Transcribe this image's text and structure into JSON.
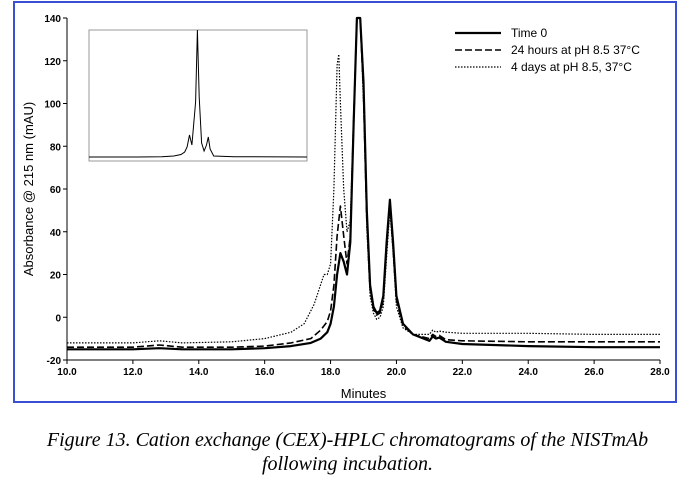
{
  "chart_data": {
    "type": "line",
    "xlabel": "Minutes",
    "ylabel": "Absorbance @ 215 nm (mAU)",
    "xlim": [
      10,
      28
    ],
    "ylim": [
      -20,
      140
    ],
    "x_ticks": [
      "10.0",
      "12.0",
      "14.0",
      "16.0",
      "18.0",
      "20.0",
      "22.0",
      "24.0",
      "26.0",
      "28.0"
    ],
    "y_ticks": [
      "-20",
      "0",
      "20",
      "40",
      "60",
      "80",
      "100",
      "120",
      "140"
    ],
    "grid": false,
    "legend_position": "top-right",
    "series": [
      {
        "name": "Time 0",
        "style": "solid",
        "x": [
          10,
          12,
          12.8,
          13.5,
          15,
          16,
          16.8,
          17.4,
          17.7,
          17.9,
          18.0,
          18.1,
          18.2,
          18.3,
          18.4,
          18.5,
          18.6,
          18.7,
          18.8,
          18.9,
          19.0,
          19.1,
          19.2,
          19.3,
          19.4,
          19.5,
          19.6,
          19.7,
          19.8,
          19.9,
          20.0,
          20.2,
          20.5,
          21.0,
          21.1,
          21.2,
          21.3,
          21.5,
          22,
          24,
          26,
          28
        ],
        "y": [
          -15,
          -15,
          -14.5,
          -15,
          -15,
          -14.5,
          -13.5,
          -12,
          -10,
          -7,
          -3,
          5,
          20,
          30,
          26,
          20,
          35,
          90,
          140,
          140,
          110,
          50,
          15,
          5,
          2,
          3,
          10,
          35,
          55,
          35,
          10,
          -3,
          -8,
          -11,
          -9,
          -10,
          -9.5,
          -11.5,
          -12.5,
          -13.5,
          -14,
          -14
        ]
      },
      {
        "name": "24 hours at pH 8.5 37°C",
        "style": "dashed",
        "x": [
          10,
          12,
          12.8,
          13.5,
          15,
          16,
          16.8,
          17.4,
          17.7,
          17.9,
          18.0,
          18.1,
          18.2,
          18.3,
          18.4,
          18.5,
          18.6,
          18.7,
          18.8,
          18.9,
          19.0,
          19.1,
          19.2,
          19.3,
          19.4,
          19.5,
          19.6,
          19.7,
          19.8,
          19.9,
          20.0,
          20.2,
          20.5,
          21.0,
          21.1,
          21.2,
          21.3,
          21.5,
          22,
          24,
          26,
          28
        ],
        "y": [
          -14,
          -14,
          -13,
          -14,
          -14,
          -13.5,
          -12,
          -10,
          -6,
          -2,
          3,
          15,
          38,
          52,
          38,
          25,
          38,
          90,
          140,
          140,
          105,
          45,
          13,
          4,
          1,
          2,
          8,
          32,
          53,
          32,
          8,
          -4,
          -8,
          -10,
          -8,
          -9,
          -8.5,
          -10.5,
          -11,
          -11.5,
          -11.5,
          -11.5
        ]
      },
      {
        "name": "4 days at pH 8.5, 37°C",
        "style": "dotted",
        "x": [
          10,
          12,
          12.8,
          13.5,
          15,
          16,
          16.8,
          17.2,
          17.5,
          17.8,
          17.9,
          18.0,
          18.1,
          18.2,
          18.25,
          18.3,
          18.4,
          18.5,
          18.6,
          18.7,
          18.8,
          18.9,
          19.0,
          19.1,
          19.2,
          19.3,
          19.4,
          19.5,
          19.6,
          19.7,
          19.8,
          19.9,
          20.0,
          20.2,
          20.5,
          21.0,
          21.1,
          21.2,
          21.3,
          21.5,
          22,
          24,
          26,
          28
        ],
        "y": [
          -12,
          -12,
          -11,
          -12,
          -11.5,
          -10,
          -7,
          -3,
          6,
          20,
          20,
          25,
          60,
          118,
          123,
          100,
          60,
          40,
          45,
          95,
          140,
          140,
          100,
          42,
          10,
          2,
          -1,
          0,
          5,
          28,
          50,
          30,
          5,
          -5,
          -8,
          -8,
          -6,
          -7,
          -6.5,
          -7,
          -7.5,
          -7.5,
          -8,
          -8
        ]
      }
    ],
    "inset": {
      "description_visible": false
    }
  },
  "caption": {
    "line1": "Figure 13.  Cation exchange (CEX)-HPLC chromatograms of the NISTmAb",
    "line2": "following incubation."
  }
}
